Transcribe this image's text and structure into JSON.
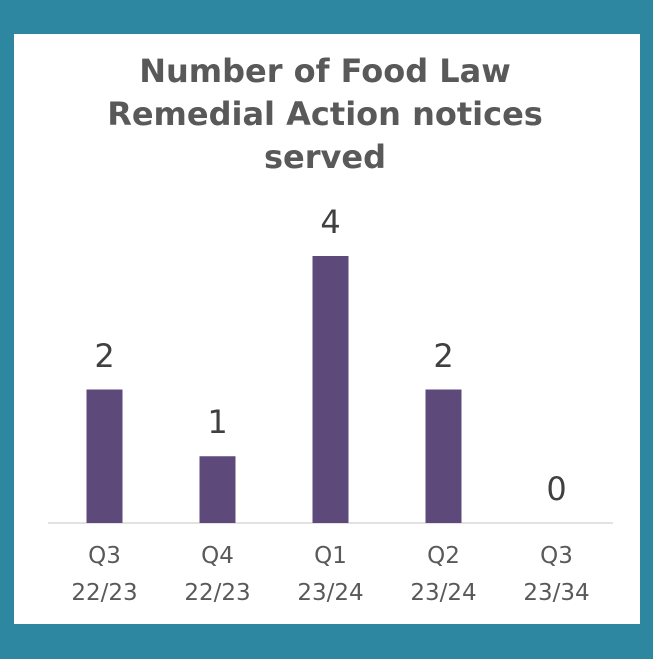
{
  "chart_data": {
    "type": "bar",
    "title": "Number of Food Law Remedial Action notices served",
    "categories": [
      "Q3 22/23",
      "Q4 22/23",
      "Q1 23/24",
      "Q2 23/24",
      "Q3 23/34"
    ],
    "values": [
      2,
      1,
      4,
      2,
      0
    ],
    "color": "#5d4a7b"
  }
}
